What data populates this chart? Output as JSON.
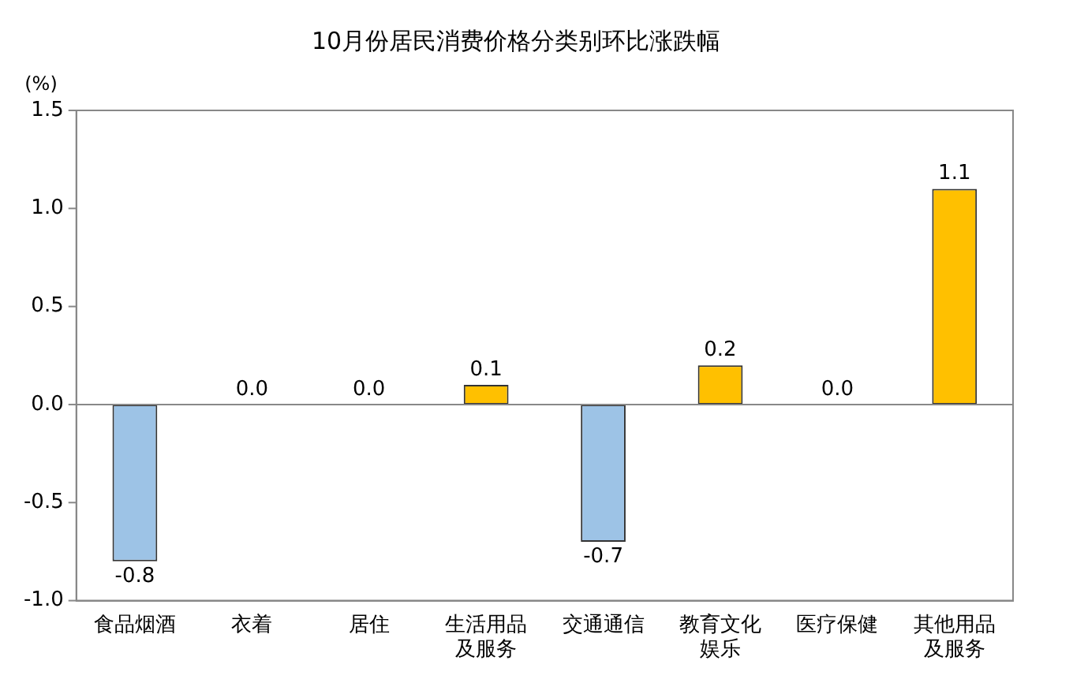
{
  "chart_data": {
    "type": "bar",
    "title": "10月份居民消费价格分类别环比涨跌幅",
    "ylabel": "(%)",
    "categories": [
      "食品烟酒",
      "衣着",
      "居住",
      "生活用品及服务",
      "交通通信",
      "教育文化娱乐",
      "医疗保健",
      "其他用品及服务"
    ],
    "values": [
      -0.8,
      0.0,
      0.0,
      0.1,
      -0.7,
      0.2,
      0.0,
      1.1
    ],
    "colors": [
      "#9dc3e6",
      "#ffc000",
      "#ffc000",
      "#ffc000",
      "#9dc3e6",
      "#ffc000",
      "#ffc000",
      "#ffc000"
    ],
    "value_labels": [
      "-0.8",
      "0.0",
      "0.0",
      "0.1",
      "-0.7",
      "0.2",
      "0.0",
      "1.1"
    ],
    "ylim": [
      -1.0,
      1.5
    ],
    "yticks": [
      {
        "value": -1.0,
        "label": "-1.0"
      },
      {
        "value": -0.5,
        "label": "-0.5"
      },
      {
        "value": 0,
        "label": "0.0"
      },
      {
        "value": 0.5,
        "label": "0.5"
      },
      {
        "value": 1.0,
        "label": "1.0"
      },
      1.5
    ],
    "legend": false
  }
}
